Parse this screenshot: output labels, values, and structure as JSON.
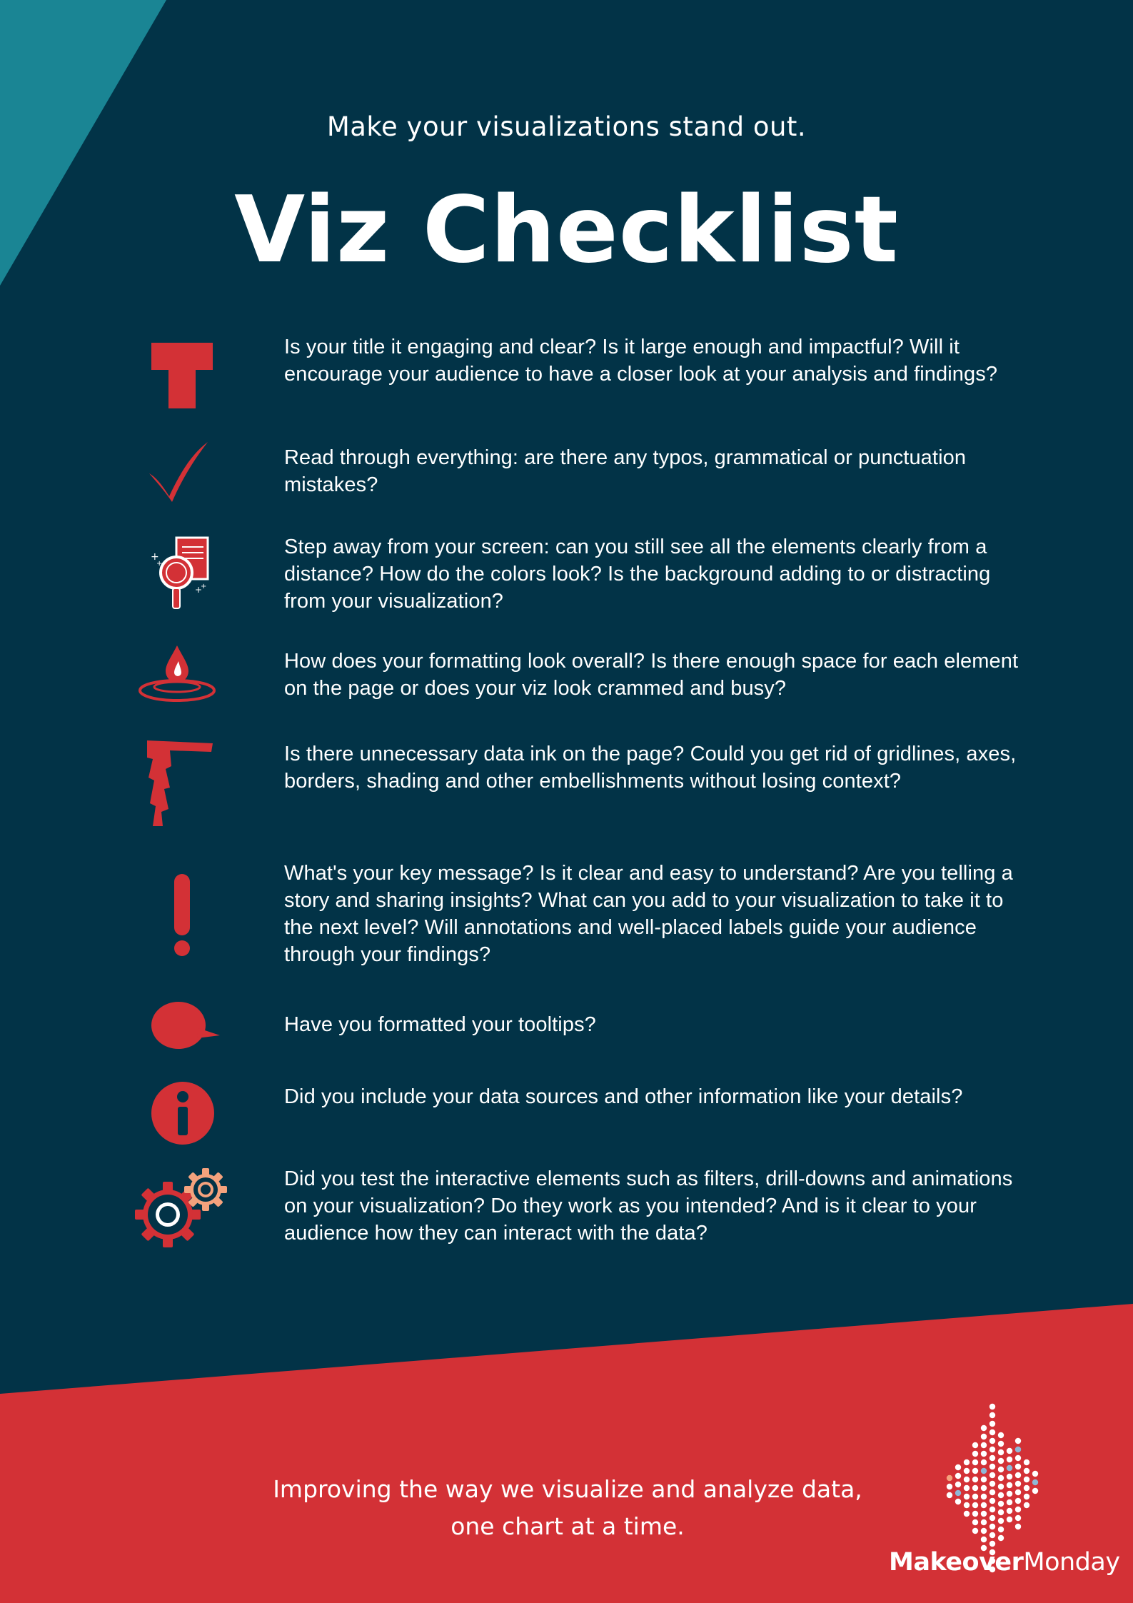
{
  "header": {
    "subtitle": "Make your visualizations stand out.",
    "title": "Viz Checklist"
  },
  "colors": {
    "background": "#023347",
    "accent_teal": "#1a8594",
    "accent_red": "#d33136",
    "accent_peach": "#f4a27d",
    "text": "#ffffff"
  },
  "checklist": [
    {
      "icon": "title-t-icon",
      "text": "Is your title it engaging and clear? Is it large enough and impactful? Will it encourage your audience to have a closer look at your analysis and findings?"
    },
    {
      "icon": "checkmark-icon",
      "text": "Read through everything: are there any typos, grammatical or punctuation mistakes?"
    },
    {
      "icon": "magnifier-document-icon",
      "text": "Step away from your screen: can you still see all the elements clearly from a distance? How do the colors look? Is the background adding to or distracting from your visualization?"
    },
    {
      "icon": "water-drop-icon",
      "text": "How does your formatting look overall? Is there enough space for each element on the page or does your viz look crammed and busy?"
    },
    {
      "icon": "axes-icon",
      "text": "Is there unnecessary data ink on the page? Could you get rid of gridlines, axes, borders, shading and other embellishments without losing context?"
    },
    {
      "icon": "exclamation-icon",
      "text": "What's your key message? Is it clear and easy to understand? Are you telling a story and sharing insights? What can you add to your visualization to take it to the next level? Will annotations and well-placed labels guide your audience through your findings?"
    },
    {
      "icon": "speech-bubble-icon",
      "text": "Have you formatted your tooltips?"
    },
    {
      "icon": "info-icon",
      "text": "Did you include your data sources and other information like your details?"
    },
    {
      "icon": "gears-icon",
      "text": "Did you test the interactive elements such as filters, drill-downs and animations on your visualization? Do they work as you intended? And is it clear to your audience how they can interact with the data?"
    }
  ],
  "footer": {
    "tagline_line1": "Improving the way we visualize and analyze data,",
    "tagline_line2": "one chart at a time.",
    "brand_bold": "Makeover",
    "brand_regular": "Monday"
  }
}
